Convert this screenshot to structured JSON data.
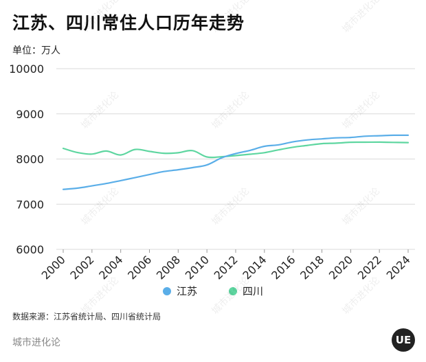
{
  "title": "江苏、四川常住人口历年走势",
  "unit_label": "单位：万人",
  "source": "数据来源：江苏省统计局、四川省统计局",
  "brand": "城市进化论",
  "logo_text": "UE",
  "watermark": "城市进化论",
  "colors": {
    "jiangsu": "#5aaee8",
    "sichuan": "#5ed6a0",
    "grid": "#d9d9d9"
  },
  "chart_data": {
    "type": "line",
    "title": "江苏、四川常住人口历年走势",
    "ylabel": "单位：万人",
    "ylim": [
      6000,
      10000
    ],
    "yticks": [
      "6000",
      "7000",
      "8000",
      "9000",
      "10000"
    ],
    "xlim": [
      2000,
      2024
    ],
    "xticks": [
      "2000",
      "2002",
      "2004",
      "2006",
      "2008",
      "2010",
      "2012",
      "2014",
      "2016",
      "2018",
      "2020",
      "2022",
      "2024"
    ],
    "legend_position": "bottom",
    "grid": true,
    "x": [
      2000,
      2001,
      2002,
      2003,
      2004,
      2005,
      2006,
      2007,
      2008,
      2009,
      2010,
      2011,
      2012,
      2013,
      2014,
      2015,
      2016,
      2017,
      2018,
      2019,
      2020,
      2021,
      2022,
      2023,
      2024
    ],
    "series": [
      {
        "name": "江苏",
        "color": "#5aaee8",
        "values": [
          7327,
          7355,
          7406,
          7458,
          7523,
          7588,
          7656,
          7723,
          7762,
          7810,
          7869,
          8023,
          8120,
          8192,
          8281,
          8315,
          8381,
          8423,
          8446,
          8469,
          8477,
          8505,
          8515,
          8526,
          8526
        ]
      },
      {
        "name": "四川",
        "color": "#5ed6a0",
        "values": [
          8235,
          8143,
          8110,
          8176,
          8090,
          8212,
          8169,
          8127,
          8138,
          8185,
          8045,
          8050,
          8076,
          8107,
          8140,
          8204,
          8262,
          8302,
          8341,
          8351,
          8371,
          8372,
          8374,
          8368,
          8364
        ]
      }
    ]
  }
}
